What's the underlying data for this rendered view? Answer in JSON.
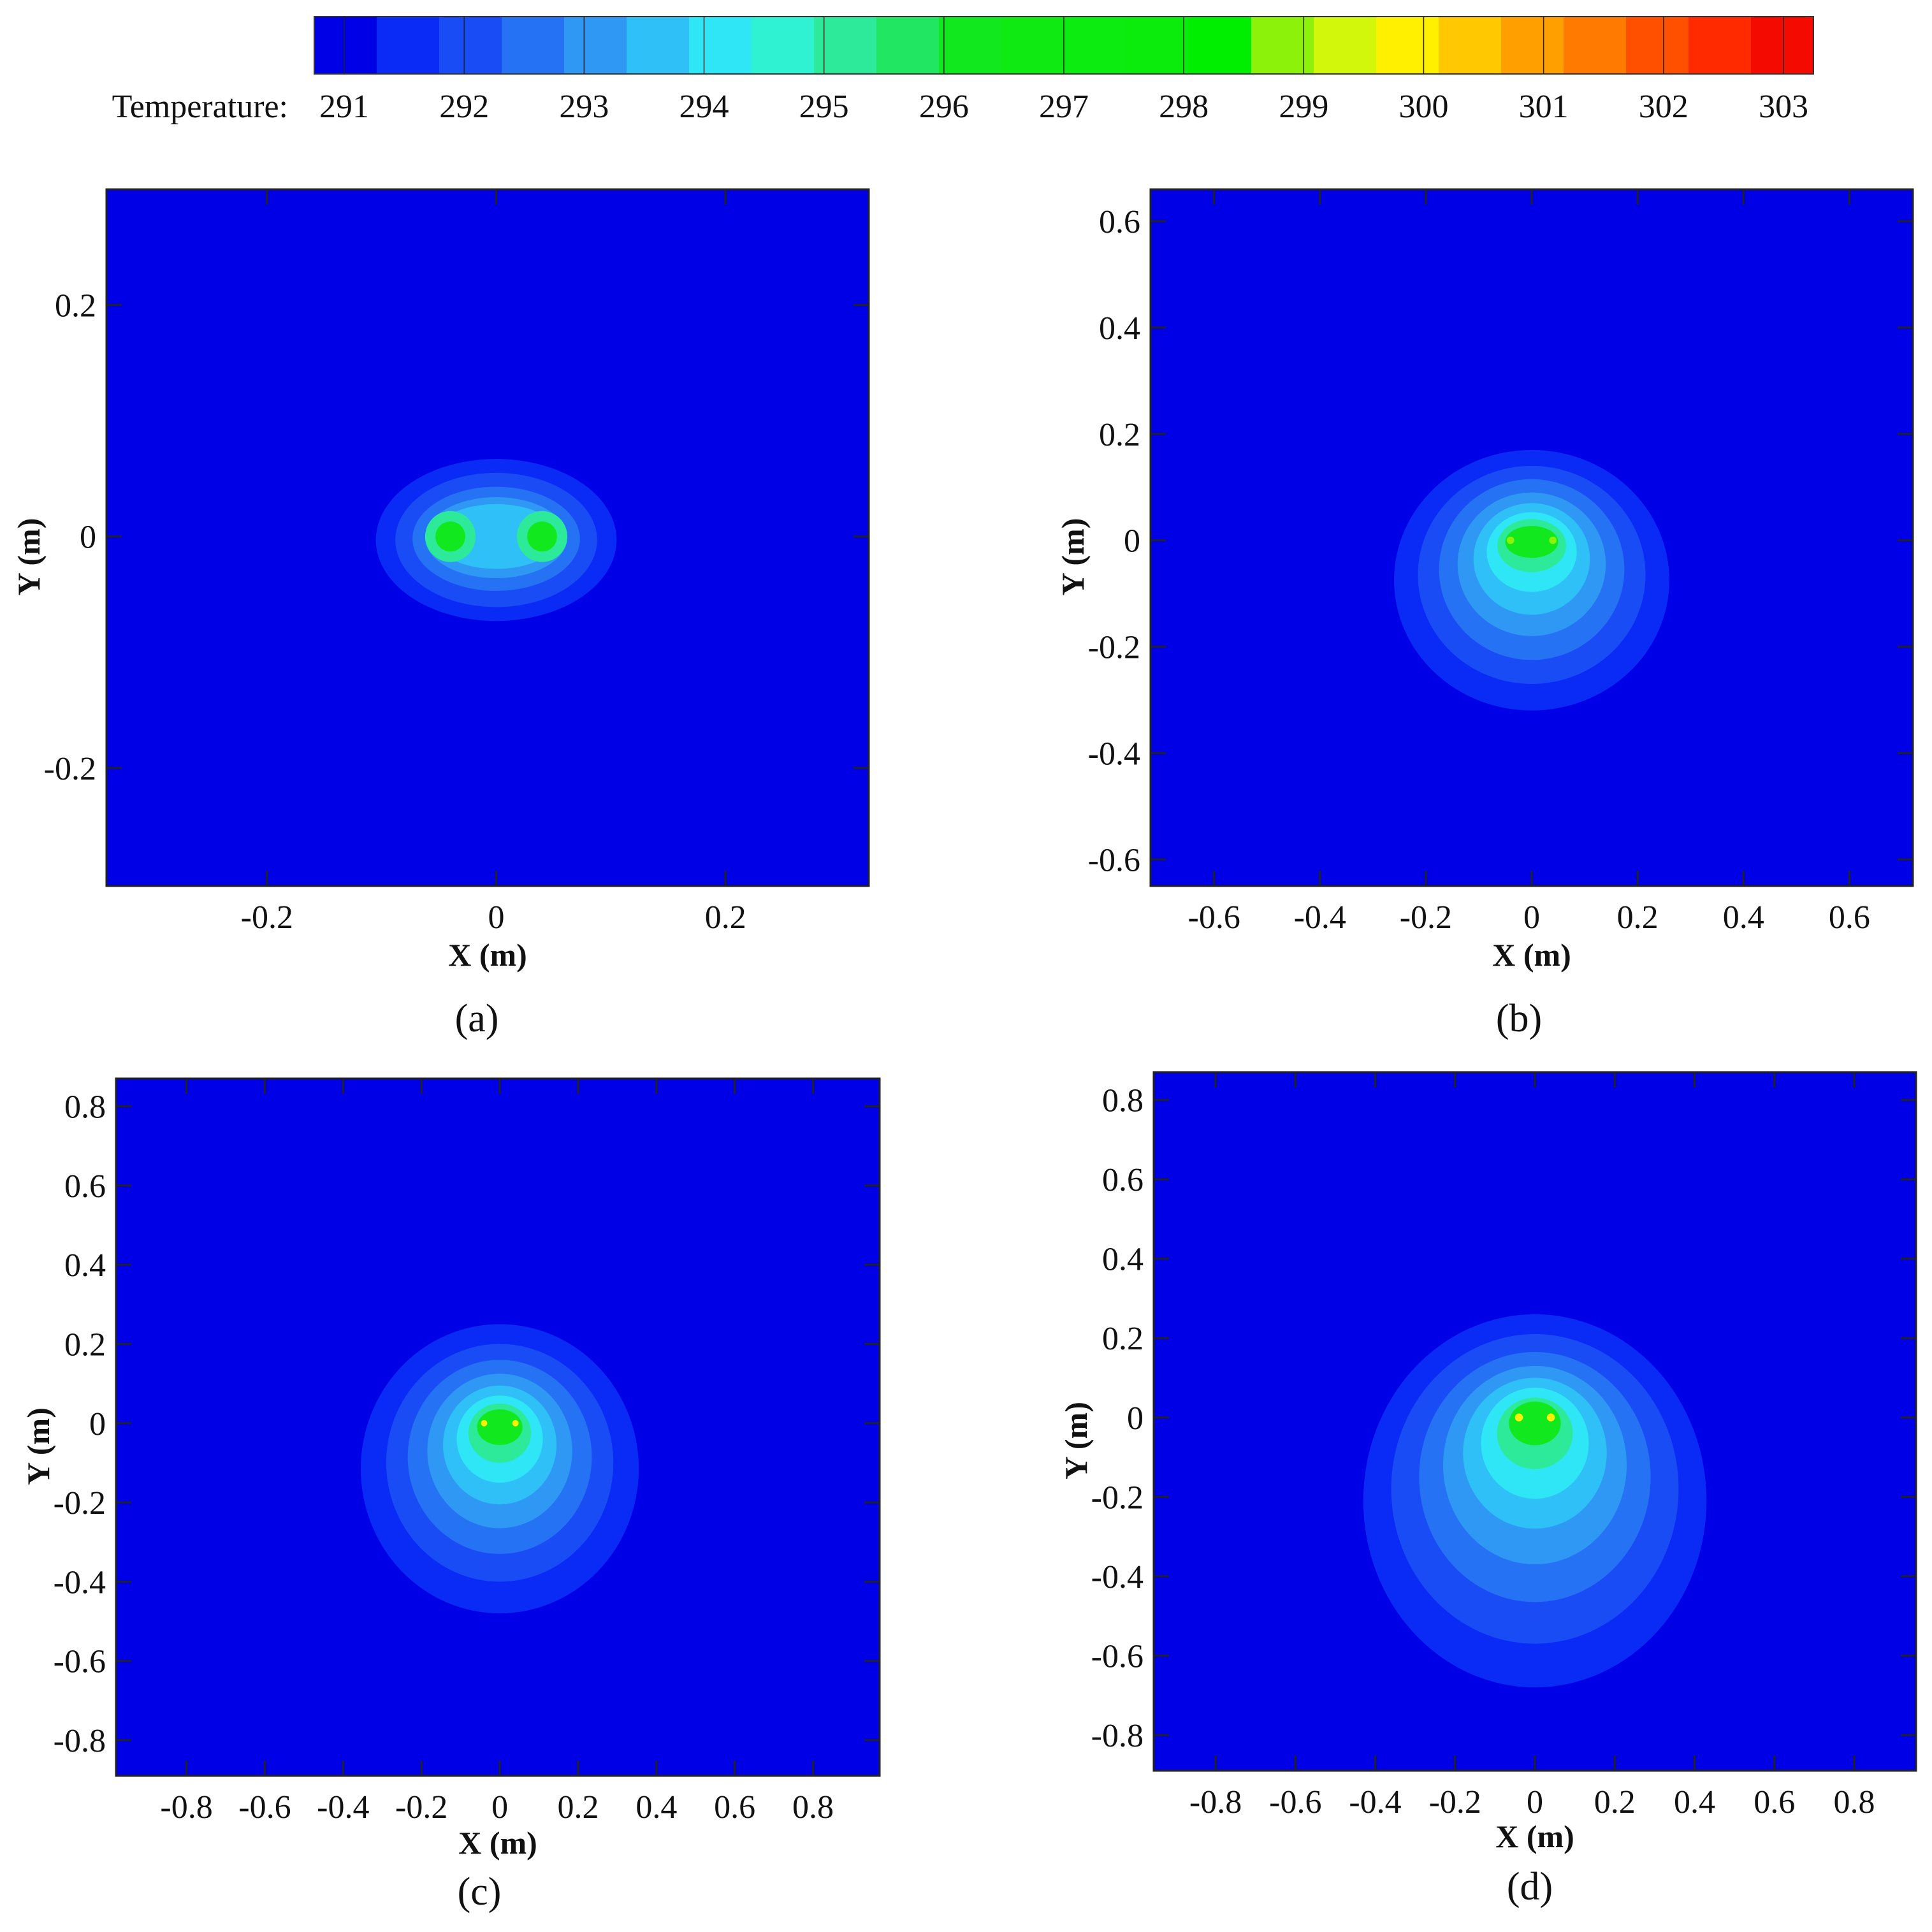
{
  "colorbar": {
    "label": "Temperature:",
    "min": 290.75,
    "max": 303.25,
    "tick_values": [
      291,
      292,
      293,
      294,
      295,
      296,
      297,
      298,
      299,
      300,
      301,
      302,
      303
    ],
    "tick_labels": [
      "291",
      "292",
      "293",
      "294",
      "295",
      "296",
      "297",
      "298",
      "299",
      "300",
      "301",
      "302",
      "303"
    ],
    "colors": [
      "#0000e6",
      "#0a2af5",
      "#1a4cf6",
      "#2572f4",
      "#2e98f4",
      "#2ec0f6",
      "#2ee6f6",
      "#2ef2d2",
      "#2cea9a",
      "#20e662",
      "#12e81e",
      "#0fea12",
      "#0cec10",
      "#0cec0c",
      "#00ee00",
      "#8cf20a",
      "#d2f70a",
      "#fff000",
      "#ffc800",
      "#ffa000",
      "#ff7a00",
      "#ff5000",
      "#ff2a00",
      "#f50a00"
    ]
  },
  "chart_data": [
    {
      "type": "heatmap",
      "panel": "(a)",
      "xlabel": "X (m)",
      "ylabel": "Y (m)",
      "xlim": [
        -0.34,
        0.325
      ],
      "ylim": [
        -0.302,
        0.3
      ],
      "xticks": [
        -0.2,
        0,
        0.2
      ],
      "xtick_labels": [
        "-0.2",
        "0",
        "0.2"
      ],
      "yticks": [
        -0.2,
        0,
        0.2
      ],
      "ytick_labels": [
        "-0.2",
        "0",
        "0.2"
      ],
      "background_temperature": 291,
      "heat_sources": [
        {
          "x": -0.04,
          "y": 0
        },
        {
          "x": 0.04,
          "y": 0
        }
      ],
      "peak_temperature": 296,
      "contours": [
        {
          "temperature": 291.5,
          "rx": 0.105,
          "ry": 0.07,
          "dy": -0.003
        },
        {
          "temperature": 292,
          "rx": 0.088,
          "ry": 0.058,
          "dy": -0.003
        },
        {
          "temperature": 292.5,
          "rx": 0.073,
          "ry": 0.045,
          "dy": -0.002
        },
        {
          "temperature": 293,
          "rx": 0.062,
          "ry": 0.035,
          "dy": -0.001
        },
        {
          "temperature": 293.5,
          "rx": 0.055,
          "ry": 0.028,
          "dy": 0
        },
        {
          "temperature": 295,
          "rx": 0.022,
          "ry": 0.022,
          "dy": 0,
          "split": true
        },
        {
          "temperature": 296,
          "rx": 0.013,
          "ry": 0.013,
          "dy": 0,
          "split": true
        }
      ]
    },
    {
      "type": "heatmap",
      "panel": "(b)",
      "xlabel": "X (m)",
      "ylabel": "Y (m)",
      "xlim": [
        -0.72,
        0.72
      ],
      "ylim": [
        -0.65,
        0.66
      ],
      "xticks": [
        -0.6,
        -0.4,
        -0.2,
        0,
        0.2,
        0.4,
        0.6
      ],
      "xtick_labels": [
        "-0.6",
        "-0.4",
        "-0.2",
        "0",
        "0.2",
        "0.4",
        "0.6"
      ],
      "yticks": [
        -0.6,
        -0.4,
        -0.2,
        0,
        0.2,
        0.4,
        0.6
      ],
      "ytick_labels": [
        "-0.6",
        "-0.4",
        "-0.2",
        "0",
        "0.2",
        "0.4",
        "0.6"
      ],
      "background_temperature": 291,
      "heat_sources": [
        {
          "x": -0.04,
          "y": 0
        },
        {
          "x": 0.04,
          "y": 0
        }
      ],
      "peak_temperature": 299,
      "contours": [
        {
          "temperature": 291.5,
          "rx": 0.26,
          "ry": 0.245,
          "dy": -0.075
        },
        {
          "temperature": 292,
          "rx": 0.215,
          "ry": 0.205,
          "dy": -0.065
        },
        {
          "temperature": 292.5,
          "rx": 0.175,
          "ry": 0.17,
          "dy": -0.055
        },
        {
          "temperature": 293,
          "rx": 0.14,
          "ry": 0.135,
          "dy": -0.045
        },
        {
          "temperature": 293.5,
          "rx": 0.11,
          "ry": 0.105,
          "dy": -0.035
        },
        {
          "temperature": 294,
          "rx": 0.085,
          "ry": 0.075,
          "dy": -0.022
        },
        {
          "temperature": 295,
          "rx": 0.065,
          "ry": 0.05,
          "dy": -0.01
        },
        {
          "temperature": 296,
          "rx": 0.05,
          "ry": 0.03,
          "dy": -0.003
        },
        {
          "temperature": 299,
          "rx": 0.007,
          "ry": 0.007,
          "dy": 0,
          "split": true
        }
      ]
    },
    {
      "type": "heatmap",
      "panel": "(c)",
      "xlabel": "X (m)",
      "ylabel": "Y (m)",
      "xlim": [
        -0.98,
        0.97
      ],
      "ylim": [
        -0.89,
        0.87
      ],
      "xticks": [
        -0.8,
        -0.6,
        -0.4,
        -0.2,
        0,
        0.2,
        0.4,
        0.6,
        0.8
      ],
      "xtick_labels": [
        "-0.8",
        "-0.6",
        "-0.4",
        "-0.2",
        "0",
        "0.2",
        "0.4",
        "0.6",
        "0.8"
      ],
      "yticks": [
        -0.8,
        -0.6,
        -0.4,
        -0.2,
        0,
        0.2,
        0.4,
        0.6,
        0.8
      ],
      "ytick_labels": [
        "-0.8",
        "-0.6",
        "-0.4",
        "-0.2",
        "0",
        "0.2",
        "0.4",
        "0.6",
        "0.8"
      ],
      "background_temperature": 291,
      "heat_sources": [
        {
          "x": -0.04,
          "y": 0
        },
        {
          "x": 0.04,
          "y": 0
        }
      ],
      "peak_temperature": 300,
      "contours": [
        {
          "temperature": 291.5,
          "rx": 0.355,
          "ry": 0.365,
          "dy": -0.115
        },
        {
          "temperature": 292,
          "rx": 0.29,
          "ry": 0.3,
          "dy": -0.1
        },
        {
          "temperature": 292.5,
          "rx": 0.235,
          "ry": 0.245,
          "dy": -0.085
        },
        {
          "temperature": 293,
          "rx": 0.185,
          "ry": 0.195,
          "dy": -0.07
        },
        {
          "temperature": 293.5,
          "rx": 0.145,
          "ry": 0.15,
          "dy": -0.055
        },
        {
          "temperature": 294,
          "rx": 0.11,
          "ry": 0.11,
          "dy": -0.04
        },
        {
          "temperature": 295,
          "rx": 0.08,
          "ry": 0.075,
          "dy": -0.025
        },
        {
          "temperature": 296,
          "rx": 0.058,
          "ry": 0.045,
          "dy": -0.01
        },
        {
          "temperature": 300,
          "rx": 0.008,
          "ry": 0.008,
          "dy": 0,
          "split": true
        }
      ]
    },
    {
      "type": "heatmap",
      "panel": "(d)",
      "xlabel": "X (m)",
      "ylabel": "Y (m)",
      "xlim": [
        -0.955,
        0.955
      ],
      "ylim": [
        -0.89,
        0.87
      ],
      "xticks": [
        -0.8,
        -0.6,
        -0.4,
        -0.2,
        0,
        0.2,
        0.4,
        0.6,
        0.8
      ],
      "xtick_labels": [
        "-0.8",
        "-0.6",
        "-0.4",
        "-0.2",
        "0",
        "0.2",
        "0.4",
        "0.6",
        "0.8"
      ],
      "yticks": [
        -0.8,
        -0.6,
        -0.4,
        -0.2,
        0,
        0.2,
        0.4,
        0.6,
        0.8
      ],
      "ytick_labels": [
        "-0.8",
        "-0.6",
        "-0.4",
        "-0.2",
        "0",
        "0.2",
        "0.4",
        "0.6",
        "0.8"
      ],
      "background_temperature": 291,
      "heat_sources": [
        {
          "x": -0.04,
          "y": 0
        },
        {
          "x": 0.04,
          "y": 0
        }
      ],
      "peak_temperature": 300,
      "contours": [
        {
          "temperature": 291.5,
          "rx": 0.43,
          "ry": 0.47,
          "dy": -0.21
        },
        {
          "temperature": 292,
          "rx": 0.36,
          "ry": 0.39,
          "dy": -0.18
        },
        {
          "temperature": 292.5,
          "rx": 0.29,
          "ry": 0.315,
          "dy": -0.15
        },
        {
          "temperature": 293,
          "rx": 0.23,
          "ry": 0.25,
          "dy": -0.12
        },
        {
          "temperature": 293.5,
          "rx": 0.18,
          "ry": 0.19,
          "dy": -0.09
        },
        {
          "temperature": 294,
          "rx": 0.135,
          "ry": 0.14,
          "dy": -0.065
        },
        {
          "temperature": 295,
          "rx": 0.095,
          "ry": 0.09,
          "dy": -0.04
        },
        {
          "temperature": 296,
          "rx": 0.065,
          "ry": 0.055,
          "dy": -0.015
        },
        {
          "temperature": 300,
          "rx": 0.01,
          "ry": 0.01,
          "dy": 0,
          "split": true
        }
      ]
    }
  ]
}
